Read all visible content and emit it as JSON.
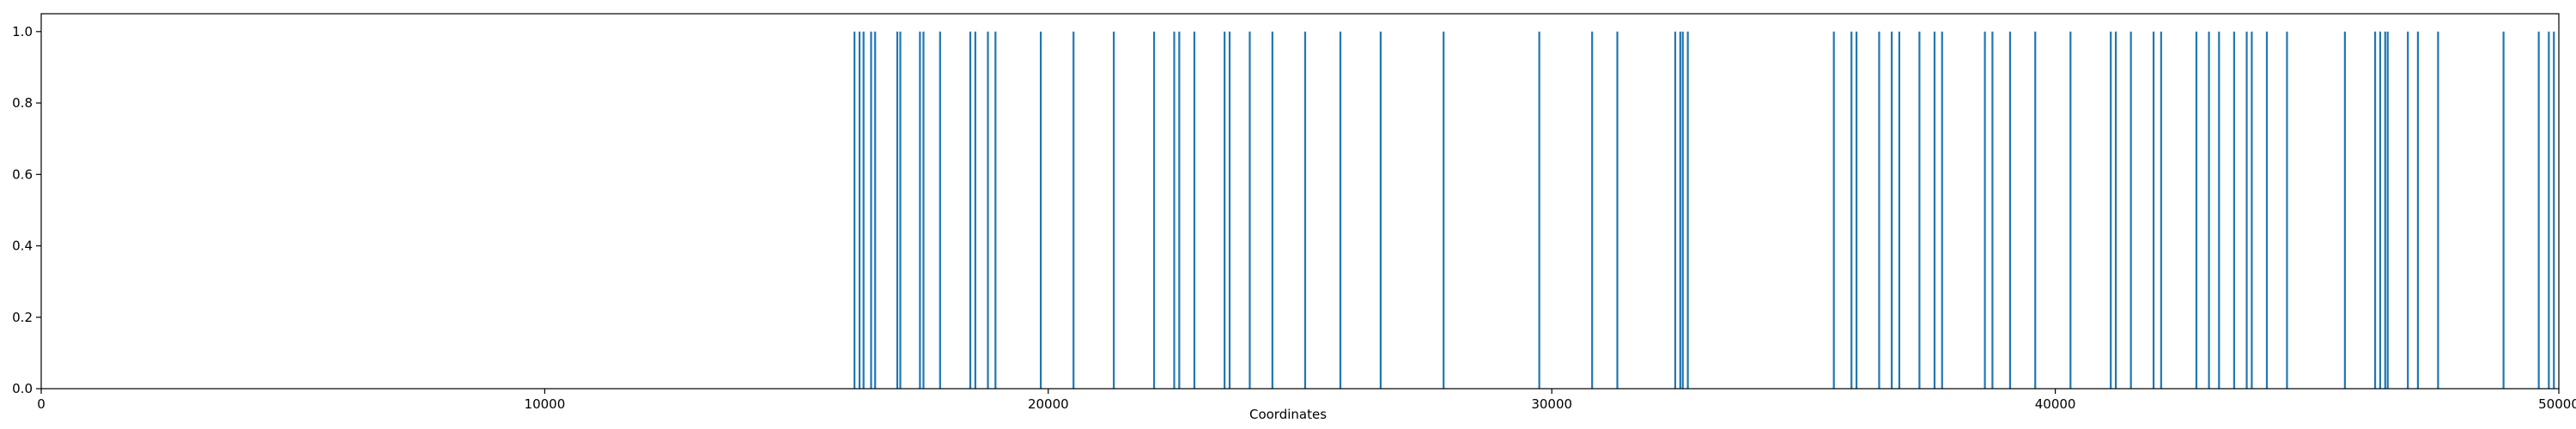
{
  "chart_data": {
    "type": "bar",
    "title": "",
    "xlabel": "Coordinates",
    "ylabel": "",
    "xlim": [
      0,
      50000
    ],
    "ylim": [
      0,
      1.05
    ],
    "x_ticks": [
      "0",
      "10000",
      "20000",
      "30000",
      "40000",
      "50000"
    ],
    "y_ticks": [
      "0.0",
      "0.2",
      "0.4",
      "0.6",
      "0.8",
      "1.0"
    ],
    "grid": false,
    "legend": "none",
    "bar_color": "#1f77b4",
    "x": [
      16150,
      16250,
      16330,
      16480,
      16560,
      17000,
      17060,
      17450,
      17520,
      17850,
      18450,
      18550,
      18800,
      18950,
      19850,
      20500,
      21300,
      22100,
      22500,
      22600,
      22900,
      23500,
      23600,
      24000,
      24450,
      25100,
      25800,
      26600,
      27850,
      29750,
      30800,
      31300,
      32450,
      32550,
      32600,
      32700,
      35600,
      35950,
      36050,
      36500,
      36750,
      36900,
      37300,
      37600,
      37750,
      38600,
      38750,
      39100,
      39600,
      40300,
      41100,
      41200,
      41500,
      41950,
      42100,
      42800,
      43050,
      43250,
      43550,
      43800,
      43900,
      44200,
      44600,
      45750,
      46350,
      46450,
      46550,
      46600,
      47000,
      47200,
      47600,
      48900,
      49600,
      49800,
      49900
    ],
    "values": [
      1,
      1,
      1,
      1,
      1,
      1,
      1,
      1,
      1,
      1,
      1,
      1,
      1,
      1,
      1,
      1,
      1,
      1,
      1,
      1,
      1,
      1,
      1,
      1,
      1,
      1,
      1,
      1,
      1,
      1,
      1,
      1,
      1,
      1,
      1,
      1,
      1,
      1,
      1,
      1,
      1,
      1,
      1,
      1,
      1,
      1,
      1,
      1,
      1,
      1,
      1,
      1,
      1,
      1,
      1,
      1,
      1,
      1,
      1,
      1,
      1,
      1,
      1,
      1,
      1,
      1,
      1,
      1,
      1,
      1,
      1,
      1,
      1,
      1,
      1
    ]
  }
}
